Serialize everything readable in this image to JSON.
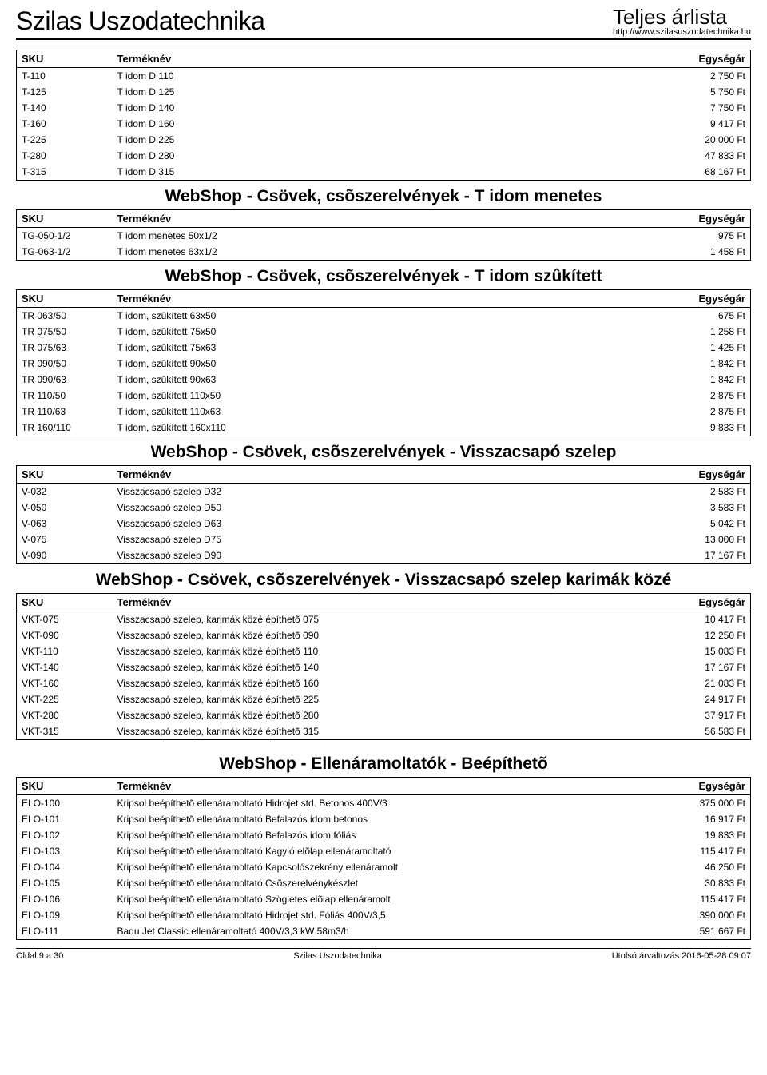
{
  "header": {
    "company": "Szilas Uszodatechnika",
    "doc_title": "Teljes árlista",
    "url": "http://www.szilasuszodatechnika.hu"
  },
  "columns": {
    "sku": "SKU",
    "name": "Terméknév",
    "price": "Egységár"
  },
  "sections": [
    {
      "title": null,
      "rows": [
        [
          "T-110",
          "T idom D 110",
          "2 750 Ft"
        ],
        [
          "T-125",
          "T idom D 125",
          "5 750 Ft"
        ],
        [
          "T-140",
          "T idom D 140",
          "7 750 Ft"
        ],
        [
          "T-160",
          "T idom D 160",
          "9 417 Ft"
        ],
        [
          "T-225",
          "T idom D 225",
          "20 000 Ft"
        ],
        [
          "T-280",
          "T idom D 280",
          "47 833 Ft"
        ],
        [
          "T-315",
          "T idom D 315",
          "68 167 Ft"
        ]
      ]
    },
    {
      "title": "WebShop - Csövek, csõszerelvények - T idom menetes",
      "rows": [
        [
          "TG-050-1/2",
          "T idom menetes 50x1/2",
          "975 Ft"
        ],
        [
          "TG-063-1/2",
          "T idom menetes 63x1/2",
          "1 458 Ft"
        ]
      ]
    },
    {
      "title": "WebShop - Csövek, csõszerelvények - T idom szûkített",
      "rows": [
        [
          "TR 063/50",
          "T idom, szûkített 63x50",
          "675 Ft"
        ],
        [
          "TR 075/50",
          "T idom, szûkített 75x50",
          "1 258 Ft"
        ],
        [
          "TR 075/63",
          "T idom, szûkített 75x63",
          "1 425 Ft"
        ],
        [
          "TR 090/50",
          "T idom, szûkített 90x50",
          "1 842 Ft"
        ],
        [
          "TR 090/63",
          "T idom, szûkített 90x63",
          "1 842 Ft"
        ],
        [
          "TR 110/50",
          "T idom, szûkített 110x50",
          "2 875 Ft"
        ],
        [
          "TR 110/63",
          "T idom, szûkített 110x63",
          "2 875 Ft"
        ],
        [
          "TR 160/110",
          "T idom, szûkített 160x110",
          "9 833 Ft"
        ]
      ]
    },
    {
      "title": "WebShop - Csövek, csõszerelvények - Visszacsapó szelep",
      "rows": [
        [
          "V-032",
          "Visszacsapó szelep D32",
          "2 583 Ft"
        ],
        [
          "V-050",
          "Visszacsapó szelep D50",
          "3 583 Ft"
        ],
        [
          "V-063",
          "Visszacsapó szelep D63",
          "5 042 Ft"
        ],
        [
          "V-075",
          "Visszacsapó szelep D75",
          "13 000 Ft"
        ],
        [
          "V-090",
          "Visszacsapó szelep D90",
          "17 167 Ft"
        ]
      ]
    },
    {
      "title": "WebShop - Csövek, csõszerelvények - Visszacsapó szelep karimák közé",
      "rows": [
        [
          "VKT-075",
          "Visszacsapó szelep, karimák közé építhetõ 075",
          "10 417 Ft"
        ],
        [
          "VKT-090",
          "Visszacsapó szelep, karimák közé építhetõ 090",
          "12 250 Ft"
        ],
        [
          "VKT-110",
          "Visszacsapó szelep, karimák közé építhetõ 110",
          "15 083 Ft"
        ],
        [
          "VKT-140",
          "Visszacsapó szelep, karimák közé építhetõ 140",
          "17 167 Ft"
        ],
        [
          "VKT-160",
          "Visszacsapó szelep, karimák közé építhetõ 160",
          "21 083 Ft"
        ],
        [
          "VKT-225",
          "Visszacsapó szelep, karimák közé építhetõ 225",
          "24 917 Ft"
        ],
        [
          "VKT-280",
          "Visszacsapó szelep, karimák közé építhetõ 280",
          "37 917 Ft"
        ],
        [
          "VKT-315",
          "Visszacsapó szelep, karimák közé építhetõ 315",
          "56 583 Ft"
        ]
      ]
    },
    {
      "title": "WebShop - Ellenáramoltatók - Beépíthetõ",
      "extra_top_margin": true,
      "rows": [
        [
          "ELO-100",
          "Kripsol beépíthetõ ellenáramoltató Hidrojet std. Betonos 400V/3",
          "375 000 Ft"
        ],
        [
          "ELO-101",
          "Kripsol beépíthetõ ellenáramoltató Befalazós idom betonos",
          "16 917 Ft"
        ],
        [
          "ELO-102",
          "Kripsol beépíthetõ ellenáramoltató Befalazós idom fóliás",
          "19 833 Ft"
        ],
        [
          "ELO-103",
          "Kripsol beépíthetõ ellenáramoltató Kagyló elõlap ellenáramoltató",
          "115 417 Ft"
        ],
        [
          "ELO-104",
          "Kripsol beépíthetõ ellenáramoltató Kapcsolószekrény ellenáramolt",
          "46 250 Ft"
        ],
        [
          "ELO-105",
          "Kripsol beépíthetõ ellenáramoltató Csõszerelvénykészlet",
          "30 833 Ft"
        ],
        [
          "ELO-106",
          "Kripsol beépíthetõ ellenáramoltató Szögletes elõlap ellenáramolt",
          "115 417 Ft"
        ],
        [
          "ELO-109",
          "Kripsol beépíthetõ ellenáramoltató Hidrojet std. Fóliás 400V/3,5",
          "390 000 Ft"
        ],
        [
          "ELO-111",
          "Badu Jet Classic ellenáramoltató 400V/3,3 kW 58m3/h",
          "591 667 Ft"
        ]
      ]
    }
  ],
  "footer": {
    "left": "Oldal 9 a 30",
    "center": "Szilas Uszodatechnika",
    "right": "Utolsó árváltozás 2016-05-28 09:07"
  }
}
